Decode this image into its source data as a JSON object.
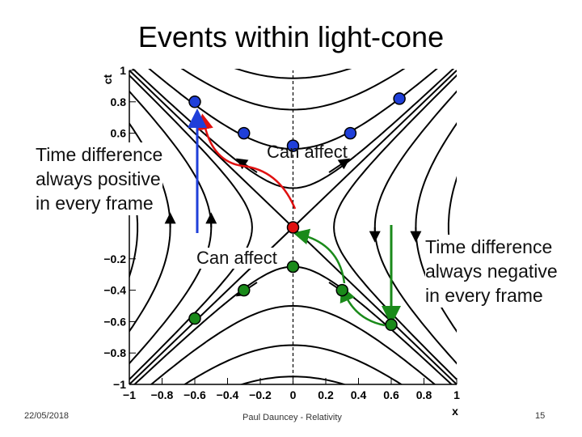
{
  "slide": {
    "title": "Events within light-cone",
    "left_callout": [
      "Time difference",
      "always positive",
      "in every frame"
    ],
    "right_callout": [
      "Time difference",
      "always negative",
      "in every frame"
    ],
    "can_affect_upper": "Can affect",
    "can_affect_lower": "Can affect",
    "footer_date": "22/05/2018",
    "footer_author": "Paul Dauncey - Relativity",
    "page_number": "15"
  },
  "chart_data": {
    "type": "scatter",
    "xlabel": "x",
    "ylabel": "ct",
    "xlim": [
      -1,
      1
    ],
    "ylim": [
      -1,
      1
    ],
    "x_ticks": [
      "−1",
      "−0.8",
      "−0.6",
      "−0.4",
      "−0.2",
      "0",
      "0.2",
      "0.4",
      "0.6",
      "0.8",
      "1"
    ],
    "y_ticks": [
      "1",
      "0.8",
      "0.6",
      "−0.2",
      "−0.4",
      "−0.6",
      "−0.8",
      "−1"
    ],
    "series": [
      {
        "color": "#1f3fd9",
        "points": [
          [
            -0.6,
            0.8
          ],
          [
            -0.3,
            0.6
          ],
          [
            0.0,
            0.52
          ],
          [
            0.35,
            0.6
          ],
          [
            0.65,
            0.82
          ]
        ]
      },
      {
        "color": "#e01010",
        "points": [
          [
            0.0,
            0.0
          ]
        ]
      },
      {
        "color": "#1a8a1a",
        "points": [
          [
            0.0,
            -0.25
          ],
          [
            -0.3,
            -0.4
          ],
          [
            0.3,
            -0.4
          ],
          [
            -0.6,
            -0.58
          ],
          [
            0.6,
            -0.62
          ]
        ]
      }
    ],
    "colors": {
      "future": "#1f3fd9",
      "origin": "#e01010",
      "past": "#1a8a1a",
      "curves": "#000000"
    }
  }
}
